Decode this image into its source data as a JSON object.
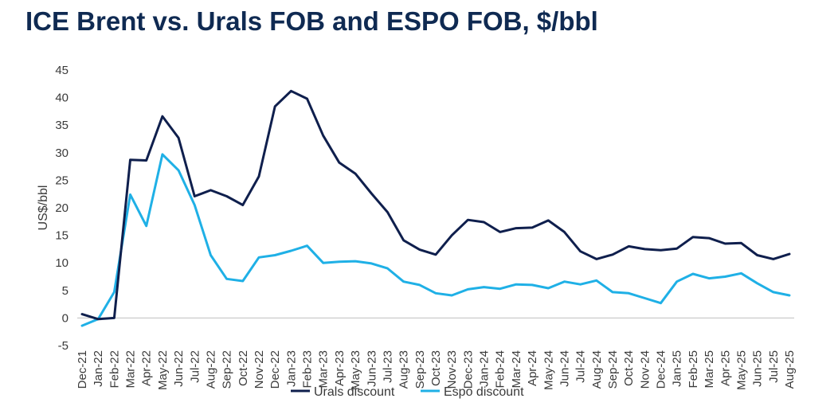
{
  "title": "ICE Brent vs. Urals FOB and ESPO FOB, $/bbl",
  "chart_data": {
    "type": "line",
    "title": "ICE Brent vs. Urals FOB and ESPO FOB, $/bbl",
    "xlabel": "",
    "ylabel": "US$/bbl",
    "ylim": [
      -5,
      45
    ],
    "yticks": [
      -5,
      0,
      5,
      10,
      15,
      20,
      25,
      30,
      35,
      40,
      45
    ],
    "grid": false,
    "legend": "bottom-center",
    "categories": [
      "Dec-21",
      "Jan-22",
      "Feb-22",
      "Mar-22",
      "Apr-22",
      "May-22",
      "Jun-22",
      "Jul-22",
      "Aug-22",
      "Sep-22",
      "Oct-22",
      "Nov-22",
      "Dec-22",
      "Jan-23",
      "Feb-23",
      "Mar-23",
      "Apr-23",
      "May-23",
      "Jun-23",
      "Jul-23",
      "Aug-23",
      "Sep-23",
      "Oct-23",
      "Nov-23",
      "Dec-23",
      "Jan-24",
      "Feb-24",
      "Mar-24",
      "Apr-24",
      "May-24",
      "Jun-24",
      "Jul-24",
      "Aug-24",
      "Sep-24",
      "Oct-24",
      "Nov-24",
      "Dec-24",
      "Jan-25",
      "Feb-25",
      "Mar-25",
      "Apr-25",
      "May-25",
      "Jun-25",
      "Jul-25",
      "Aug-25"
    ],
    "series": [
      {
        "name": "Urals discount",
        "color": "#0f1f4d",
        "values": [
          0.7,
          -0.2,
          0,
          28.7,
          28.6,
          36.6,
          32.7,
          22.1,
          23.2,
          22.1,
          20.5,
          25.7,
          38.4,
          41.2,
          39.8,
          33.1,
          28.2,
          26.2,
          22.6,
          19.2,
          14.1,
          12.4,
          11.5,
          15,
          17.8,
          17.4,
          15.6,
          16.3,
          16.4,
          17.7,
          15.6,
          12.1,
          10.7,
          11.5,
          13,
          12.5,
          12.3,
          12.6,
          14.7,
          14.5,
          13.5,
          13.6,
          11.4,
          10.7,
          11.6
        ]
      },
      {
        "name": "Espo discount",
        "color": "#1fb0e6",
        "values": [
          -1.4,
          -0.2,
          4.7,
          22.4,
          16.7,
          29.7,
          26.8,
          20.5,
          11.4,
          7.1,
          6.7,
          11,
          11.4,
          12.2,
          13.1,
          10,
          10.2,
          10.3,
          9.9,
          9,
          6.6,
          6,
          4.5,
          4.1,
          5.2,
          5.6,
          5.3,
          6.1,
          6,
          5.4,
          6.6,
          6.1,
          6.8,
          4.7,
          4.5,
          3.6,
          2.7,
          6.6,
          8,
          7.2,
          7.5,
          8.1,
          6.3,
          4.7,
          4.1
        ]
      }
    ]
  }
}
